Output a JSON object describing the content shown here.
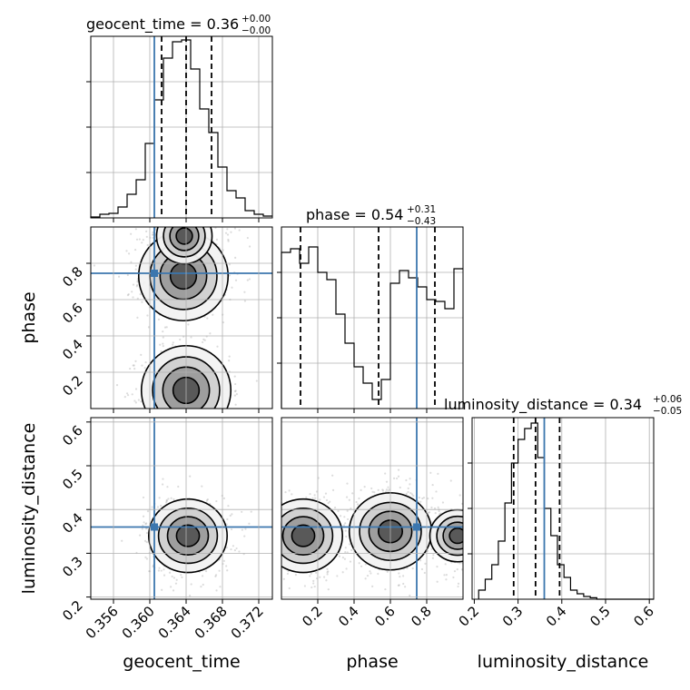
{
  "chart_data": {
    "type": "corner",
    "truth_color": "#3b76ae",
    "hist_color": "#000000",
    "grid": true,
    "parameters": [
      {
        "name": "geocent_time",
        "xlabel": "geocent_time",
        "title_prefix": "geocent_time = ",
        "title_value": "0.36",
        "title_plus": "+0.00",
        "title_minus": "−0.00",
        "range": [
          0.3535,
          0.3735
        ],
        "ticks": [
          0.356,
          0.36,
          0.364,
          0.368,
          0.372
        ],
        "tick_labels": [
          "0.356",
          "0.360",
          "0.364",
          "0.368",
          "0.372"
        ],
        "truth": 0.3605,
        "quantiles": [
          0.3613,
          0.364,
          0.3668
        ],
        "hist_edges_start": 0.3535,
        "hist_bin_width": 0.001,
        "hist_values": [
          0.005,
          0.02,
          0.025,
          0.06,
          0.13,
          0.21,
          0.41,
          0.65,
          0.88,
          0.97,
          0.98,
          0.82,
          0.6,
          0.47,
          0.28,
          0.15,
          0.11,
          0.04,
          0.02,
          0.01
        ]
      },
      {
        "name": "phase",
        "xlabel": "phase",
        "ylabel": "phase",
        "title_prefix": "phase = ",
        "title_value": "0.54",
        "title_plus": "+0.31",
        "title_minus": "−0.43",
        "range": [
          0.0,
          1.0
        ],
        "ticks": [
          0.2,
          0.4,
          0.6,
          0.8
        ],
        "tick_labels": [
          "0.2",
          "0.4",
          "0.6",
          "0.8"
        ],
        "truth": 0.745,
        "quantiles": [
          0.105,
          0.535,
          0.845
        ],
        "hist_edges_start": 0.0,
        "hist_bin_width": 0.05,
        "hist_values": [
          0.86,
          0.88,
          0.8,
          0.89,
          0.75,
          0.71,
          0.52,
          0.36,
          0.23,
          0.14,
          0.05,
          0.16,
          0.69,
          0.76,
          0.72,
          0.67,
          0.6,
          0.59,
          0.55,
          0.77
        ]
      },
      {
        "name": "luminosity_distance",
        "xlabel": "luminosity_distance",
        "ylabel": "luminosity_distance",
        "title_prefix": "luminosity_distance = ",
        "title_value": "0.34",
        "title_plus": "+0.06",
        "title_minus": "−0.05",
        "range": [
          0.195,
          0.61
        ],
        "ticks": [
          0.2,
          0.3,
          0.4,
          0.5,
          0.6
        ],
        "tick_labels": [
          "0.2",
          "0.3",
          "0.4",
          "0.5",
          "0.6"
        ],
        "truth": 0.36,
        "quantiles": [
          0.29,
          0.34,
          0.395
        ],
        "hist_edges_start": 0.21,
        "hist_bin_width": 0.015,
        "hist_values": [
          0.05,
          0.11,
          0.19,
          0.32,
          0.53,
          0.75,
          0.88,
          0.94,
          0.97,
          0.78,
          0.5,
          0.35,
          0.19,
          0.12,
          0.05,
          0.03,
          0.015,
          0.008,
          0.0,
          0.0,
          0.0,
          0.0,
          0.0,
          0.0,
          0.0,
          0.0,
          0.0
        ]
      }
    ],
    "density_modes": [
      {
        "x": "geocent_time",
        "y": "phase",
        "centers": [
          [
            0.3637,
            0.73,
            1.3
          ],
          [
            0.364,
            0.1,
            1.3
          ],
          [
            0.3638,
            0.95,
            0.5
          ]
        ],
        "spread": [
          0.0018,
          0.09
        ]
      },
      {
        "x": "geocent_time",
        "y": "luminosity_distance",
        "centers": [
          [
            0.3642,
            0.34,
            1.0
          ]
        ],
        "spread": [
          0.0018,
          0.035
        ]
      },
      {
        "x": "phase",
        "y": "luminosity_distance",
        "centers": [
          [
            0.12,
            0.34,
            1.0
          ],
          [
            0.6,
            0.35,
            1.1
          ],
          [
            0.97,
            0.34,
            0.5
          ]
        ],
        "spread": [
          0.09,
          0.035
        ]
      }
    ]
  }
}
